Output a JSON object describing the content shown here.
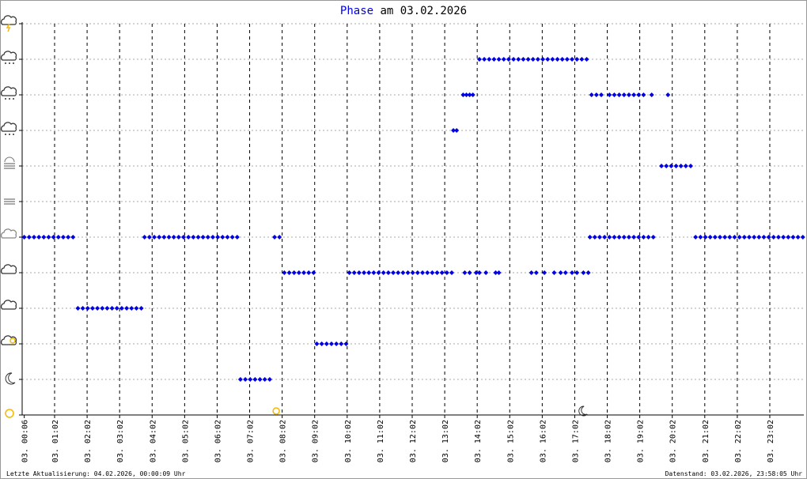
{
  "chart_data": {
    "type": "scatter",
    "title_keyword": "Phase",
    "title_rest": "am 03.02.2026",
    "footer_left": "Letzte Aktualisierung: 04.02.2026, 00:00:09 Uhr",
    "footer_right": "Datenstand: 03.02.2026, 23:58:05 Uhr",
    "color": "#0000e0",
    "xlim": [
      0.035,
      24.08
    ],
    "ylim": [
      0,
      11
    ],
    "xticks": [
      {
        "value": 0.1,
        "label": "03. 00:06"
      },
      {
        "value": 1.033,
        "label": "03. 01:02"
      },
      {
        "value": 2.033,
        "label": "03. 02:02"
      },
      {
        "value": 3.033,
        "label": "03. 03:02"
      },
      {
        "value": 4.033,
        "label": "03. 04:02"
      },
      {
        "value": 5.033,
        "label": "03. 05:02"
      },
      {
        "value": 6.033,
        "label": "03. 06:02"
      },
      {
        "value": 7.033,
        "label": "03. 07:02"
      },
      {
        "value": 8.033,
        "label": "03. 08:02"
      },
      {
        "value": 9.033,
        "label": "03. 09:02"
      },
      {
        "value": 10.033,
        "label": "03. 10:02"
      },
      {
        "value": 11.033,
        "label": "03. 11:02"
      },
      {
        "value": 12.033,
        "label": "03. 12:02"
      },
      {
        "value": 13.033,
        "label": "03. 13:02"
      },
      {
        "value": 14.033,
        "label": "03. 14:02"
      },
      {
        "value": 15.033,
        "label": "03. 15:02"
      },
      {
        "value": 16.033,
        "label": "03. 16:02"
      },
      {
        "value": 17.033,
        "label": "03. 17:02"
      },
      {
        "value": 18.033,
        "label": "03. 18:02"
      },
      {
        "value": 19.033,
        "label": "03. 19:02"
      },
      {
        "value": 20.033,
        "label": "03. 20:02"
      },
      {
        "value": 21.033,
        "label": "03. 21:02"
      },
      {
        "value": 22.033,
        "label": "03. 22:02"
      },
      {
        "value": 23.033,
        "label": "03. 23:02"
      }
    ],
    "yticks": [
      0,
      1,
      2,
      3,
      4,
      5,
      6,
      7,
      8,
      9,
      10,
      11
    ],
    "grid": true,
    "sunrise": 7.85,
    "sunset": 17.27,
    "x": [
      0.1,
      0.25,
      0.4,
      0.55,
      0.7,
      0.85,
      1.0,
      1.15,
      1.3,
      1.45,
      1.6,
      1.75,
      1.9,
      2.05,
      2.2,
      2.35,
      2.5,
      2.65,
      2.8,
      2.95,
      3.1,
      3.25,
      3.4,
      3.55,
      3.7,
      3.8,
      3.95,
      4.1,
      4.25,
      4.4,
      4.55,
      4.7,
      4.85,
      5.0,
      5.15,
      5.3,
      5.45,
      5.6,
      5.75,
      5.9,
      6.05,
      6.2,
      6.35,
      6.5,
      6.65,
      6.75,
      6.9,
      7.05,
      7.2,
      7.35,
      7.5,
      7.65,
      7.8,
      7.95,
      8.1,
      8.25,
      8.4,
      8.55,
      8.7,
      8.85,
      9.0,
      9.1,
      9.25,
      9.4,
      9.55,
      9.7,
      9.85,
      10.0,
      10.1,
      10.25,
      10.4,
      10.55,
      10.7,
      10.85,
      11.0,
      11.15,
      11.3,
      11.45,
      11.6,
      11.75,
      11.9,
      12.05,
      12.2,
      12.35,
      12.5,
      12.65,
      12.8,
      12.95,
      13.1,
      13.25,
      13.3,
      13.4,
      13.6,
      13.7,
      13.8,
      13.9,
      13.65,
      13.8,
      14.0,
      14.1,
      14.3,
      14.6,
      14.7,
      14.1,
      14.25,
      14.4,
      14.55,
      14.7,
      14.85,
      15.0,
      15.15,
      15.3,
      15.45,
      15.6,
      15.75,
      15.9,
      16.05,
      16.2,
      16.35,
      16.5,
      16.65,
      16.8,
      16.95,
      17.1,
      17.25,
      17.4,
      15.7,
      15.85,
      16.1,
      16.4,
      16.6,
      16.75,
      16.95,
      17.1,
      17.3,
      17.45,
      17.5,
      17.65,
      17.8,
      17.95,
      18.1,
      18.25,
      18.4,
      18.55,
      18.7,
      18.85,
      19.0,
      19.15,
      19.3,
      19.45,
      17.55,
      17.7,
      17.85,
      18.1,
      18.25,
      18.4,
      18.55,
      18.7,
      18.85,
      19.0,
      19.15,
      19.4,
      19.9,
      19.7,
      19.85,
      20.0,
      20.15,
      20.3,
      20.45,
      20.6,
      20.75,
      20.9,
      21.05,
      21.2,
      21.35,
      21.5,
      21.65,
      21.8,
      21.95,
      22.1,
      22.25,
      22.4,
      22.55,
      22.7,
      22.85,
      23.0,
      23.15,
      23.3,
      23.45,
      23.6,
      23.75,
      23.9,
      24.05
    ],
    "values": [
      5,
      5,
      5,
      5,
      5,
      5,
      5,
      5,
      5,
      5,
      5,
      3,
      3,
      3,
      3,
      3,
      3,
      3,
      3,
      3,
      3,
      3,
      3,
      3,
      3,
      5,
      5,
      5,
      5,
      5,
      5,
      5,
      5,
      5,
      5,
      5,
      5,
      5,
      5,
      5,
      5,
      5,
      5,
      5,
      5,
      1,
      1,
      1,
      1,
      1,
      1,
      1,
      5,
      5,
      4,
      4,
      4,
      4,
      4,
      4,
      4,
      2,
      2,
      2,
      2,
      2,
      2,
      2,
      4,
      4,
      4,
      4,
      4,
      4,
      4,
      4,
      4,
      4,
      4,
      4,
      4,
      4,
      4,
      4,
      4,
      4,
      4,
      4,
      4,
      4,
      8,
      8,
      9,
      9,
      9,
      9,
      4,
      4,
      4,
      4,
      4,
      4,
      4,
      10,
      10,
      10,
      10,
      10,
      10,
      10,
      10,
      10,
      10,
      10,
      10,
      10,
      10,
      10,
      10,
      10,
      10,
      10,
      10,
      10,
      10,
      10,
      4,
      4,
      4,
      4,
      4,
      4,
      4,
      4,
      4,
      4,
      5,
      5,
      5,
      5,
      5,
      5,
      5,
      5,
      5,
      5,
      5,
      5,
      5,
      5,
      9,
      9,
      9,
      9,
      9,
      9,
      9,
      9,
      9,
      9,
      9,
      9,
      9,
      7,
      7,
      7,
      7,
      7,
      7,
      7,
      5,
      5,
      5,
      5,
      5,
      5,
      5,
      5,
      5,
      5,
      5,
      5,
      5,
      5,
      5,
      5,
      5,
      5,
      5,
      5,
      5,
      5,
      5
    ]
  }
}
